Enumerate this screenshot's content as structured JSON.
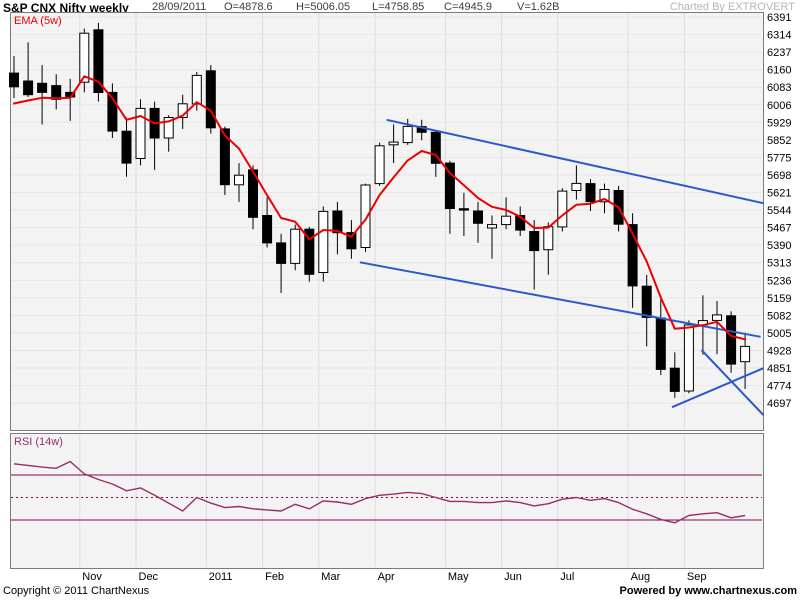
{
  "header": {
    "title": "S&P CNX Nifty weekly",
    "date": "28/09/2011",
    "open_label": "O=4878.6",
    "high_label": "H=5006.05",
    "low_label": "L=4758.85",
    "close_label": "C=4945.9",
    "volume_label": "V=1.62B",
    "credit": "Charted By EXTROVERT"
  },
  "indicators": {
    "ema_label": "EMA (5w)",
    "rsi_label": "RSI (14w)"
  },
  "footer": {
    "copyright": "Copyright © 2011 ChartNexus",
    "powered": "Powered by www.chartnexus.com"
  },
  "colors": {
    "pane_bg": "#f4f3f4",
    "pane_border": "#7b7b7b",
    "grid_vertical": "#dddcdd",
    "grid_horizontal": "#e7e6e7",
    "candle_up_fill": "#ffffff",
    "candle_down_fill": "#000000",
    "candle_stroke": "#000000",
    "ema_line": "#ee0000",
    "trendline_blue": "#2c59c9",
    "rsi_line": "#9b2c66",
    "rsi_level_line": "#7c0a4e",
    "axis_text": "#000000"
  },
  "chart_data": {
    "type": "candlestick",
    "title": "S&P CNX Nifty weekly",
    "timeframe": "weekly",
    "current_quote": {
      "date": "28/09/2011",
      "open": 4878.6,
      "high": 5006.05,
      "low": 4758.85,
      "close": 4945.9,
      "volume": "1.62B"
    },
    "y_axis": {
      "ticks": [
        6391,
        6314,
        6237,
        6160,
        6083,
        6006,
        5929,
        5852,
        5775,
        5698,
        5621,
        5544,
        5467,
        5390,
        5313,
        5236,
        5159,
        5082,
        5005,
        4928,
        4851,
        4774,
        4697
      ],
      "side": "right"
    },
    "x_axis": {
      "months": [
        {
          "label": "Nov",
          "week": 6
        },
        {
          "label": "Dec",
          "week": 10
        },
        {
          "label": "2011",
          "week": 15
        },
        {
          "label": "Feb",
          "week": 19
        },
        {
          "label": "Mar",
          "week": 23
        },
        {
          "label": "Apr",
          "week": 27
        },
        {
          "label": "May",
          "week": 32
        },
        {
          "label": "Jun",
          "week": 36
        },
        {
          "label": "Jul",
          "week": 40
        },
        {
          "label": "Aug",
          "week": 45
        },
        {
          "label": "Sep",
          "week": 49
        }
      ]
    },
    "candle_format": [
      "open",
      "high",
      "low",
      "close"
    ],
    "candles": [
      [
        6145,
        6220,
        6035,
        6085
      ],
      [
        6110,
        6280,
        6040,
        6050
      ],
      [
        6100,
        6180,
        5920,
        6060
      ],
      [
        6090,
        6140,
        5985,
        6030
      ],
      [
        6060,
        6120,
        5935,
        6040
      ],
      [
        6105,
        6340,
        6060,
        6320
      ],
      [
        6335,
        6365,
        6020,
        6060
      ],
      [
        6060,
        6100,
        5860,
        5890
      ],
      [
        5890,
        5950,
        5690,
        5750
      ],
      [
        5770,
        6030,
        5740,
        5990
      ],
      [
        5990,
        6020,
        5720,
        5860
      ],
      [
        5860,
        5960,
        5800,
        5950
      ],
      [
        5950,
        6050,
        5900,
        6010
      ],
      [
        6010,
        6150,
        5980,
        6135
      ],
      [
        6155,
        6180,
        5880,
        5905
      ],
      [
        5900,
        5910,
        5610,
        5655
      ],
      [
        5655,
        5750,
        5580,
        5697
      ],
      [
        5720,
        5740,
        5460,
        5512
      ],
      [
        5520,
        5600,
        5380,
        5400
      ],
      [
        5400,
        5440,
        5180,
        5310
      ],
      [
        5310,
        5480,
        5280,
        5460
      ],
      [
        5460,
        5470,
        5230,
        5262
      ],
      [
        5270,
        5560,
        5230,
        5538
      ],
      [
        5540,
        5580,
        5350,
        5445
      ],
      [
        5445,
        5500,
        5330,
        5374
      ],
      [
        5380,
        5660,
        5360,
        5654
      ],
      [
        5660,
        5840,
        5650,
        5826
      ],
      [
        5830,
        5920,
        5750,
        5842
      ],
      [
        5840,
        5944,
        5830,
        5911
      ],
      [
        5910,
        5940,
        5850,
        5885
      ],
      [
        5885,
        5890,
        5690,
        5749
      ],
      [
        5750,
        5760,
        5440,
        5551
      ],
      [
        5550,
        5620,
        5430,
        5544
      ],
      [
        5540,
        5580,
        5400,
        5486
      ],
      [
        5465,
        5520,
        5330,
        5480
      ],
      [
        5480,
        5600,
        5460,
        5517
      ],
      [
        5520,
        5560,
        5430,
        5456
      ],
      [
        5450,
        5500,
        5195,
        5366
      ],
      [
        5370,
        5490,
        5260,
        5471
      ],
      [
        5470,
        5640,
        5450,
        5627
      ],
      [
        5630,
        5740,
        5590,
        5661
      ],
      [
        5660,
        5680,
        5540,
        5581
      ],
      [
        5580,
        5660,
        5530,
        5634
      ],
      [
        5630,
        5650,
        5450,
        5482
      ],
      [
        5480,
        5530,
        5115,
        5211
      ],
      [
        5210,
        5260,
        4946,
        5073
      ],
      [
        5070,
        5170,
        4820,
        4845
      ],
      [
        4850,
        4920,
        4720,
        4748
      ],
      [
        4750,
        5060,
        4740,
        5040
      ],
      [
        5040,
        5170,
        4910,
        5059
      ],
      [
        5060,
        5145,
        4911,
        5084
      ],
      [
        5080,
        5100,
        4830,
        4868
      ],
      [
        4878.6,
        5006.05,
        4758.85,
        4945.9
      ]
    ],
    "ema": {
      "period": 5,
      "seed": 5975
    },
    "trendlines": [
      {
        "from_week": 27.5,
        "from_price": 5940,
        "to_week": 54.3,
        "to_price": 5574
      },
      {
        "from_week": 25.6,
        "from_price": 5315,
        "to_week": 54.1,
        "to_price": 4988
      },
      {
        "from_week": 49.9,
        "from_price": 4930,
        "to_week": 54.3,
        "to_price": 4645
      },
      {
        "from_week": 47.8,
        "from_price": 4679,
        "to_week": 54.3,
        "to_price": 4850
      }
    ],
    "rsi": {
      "period": 14,
      "levels": [
        {
          "value": 70,
          "style": "solid"
        },
        {
          "value": 50,
          "style": "dotted"
        },
        {
          "value": 30,
          "style": "solid"
        }
      ],
      "values": [
        80,
        78.5,
        77,
        76,
        82,
        71,
        66,
        62,
        56,
        58.5,
        52,
        45,
        38,
        50,
        45,
        41,
        42,
        40,
        39,
        38,
        44,
        40,
        47,
        46,
        44,
        49,
        52,
        53,
        54.5,
        53.5,
        50,
        46.5,
        46.5,
        45.5,
        45.5,
        47,
        45.5,
        42.5,
        44.5,
        48.5,
        50,
        47.5,
        49,
        45.5,
        39.5,
        35.5,
        30.5,
        27.5,
        34,
        35.5,
        36.5,
        32,
        34
      ]
    }
  }
}
